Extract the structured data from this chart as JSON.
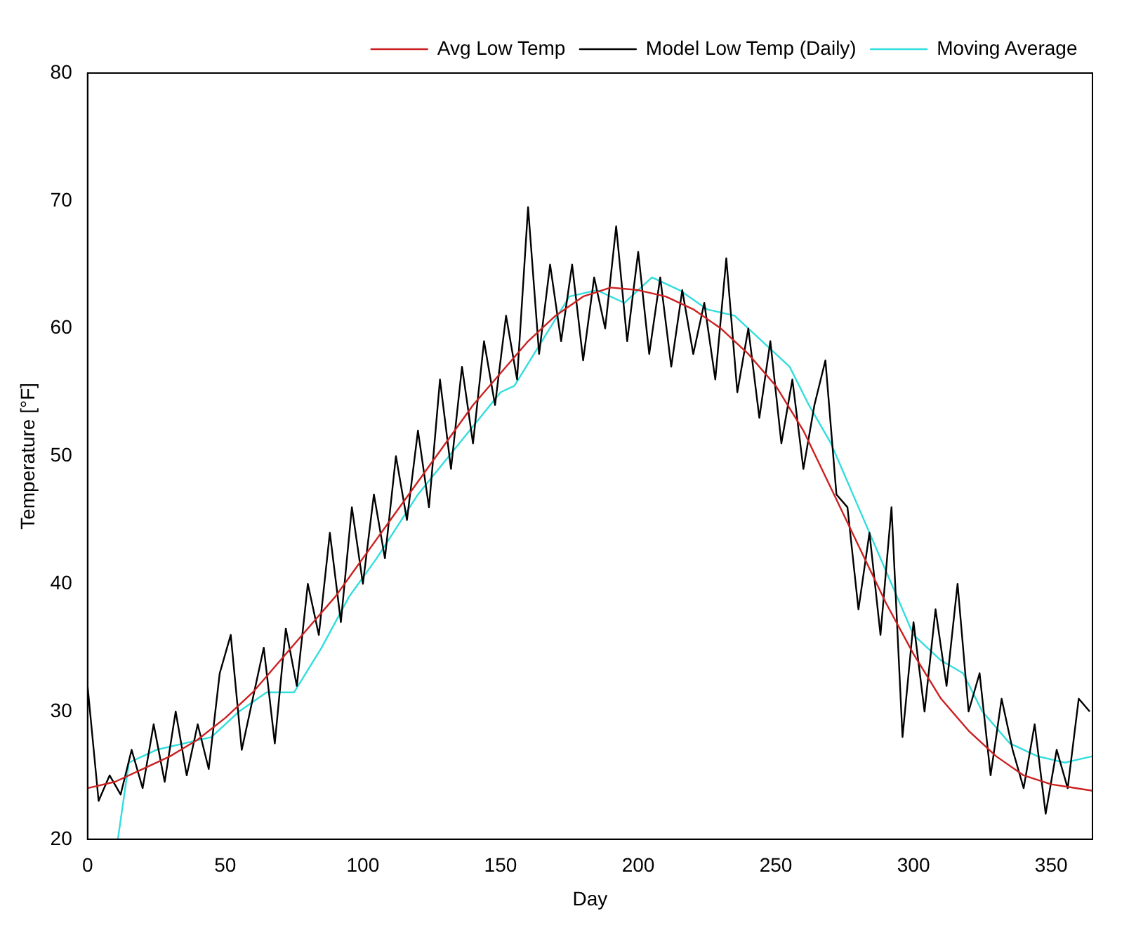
{
  "chart_data": {
    "type": "line",
    "xlabel": "Day",
    "ylabel": "Temperature [°F]",
    "xlim": [
      0,
      365
    ],
    "ylim": [
      20,
      80
    ],
    "xticks": [
      0,
      50,
      100,
      150,
      200,
      250,
      300,
      350
    ],
    "yticks": [
      20,
      30,
      40,
      50,
      60,
      70,
      80
    ],
    "grid": false,
    "legend": "top right",
    "marker": "none",
    "line_style": "solid",
    "series": [
      {
        "name": "Avg Low Temp",
        "color": "#cc2020",
        "x": [
          0,
          10,
          20,
          30,
          40,
          50,
          60,
          70,
          80,
          90,
          100,
          110,
          120,
          130,
          140,
          150,
          160,
          170,
          180,
          190,
          200,
          210,
          220,
          230,
          240,
          250,
          260,
          270,
          280,
          290,
          300,
          310,
          320,
          330,
          340,
          350,
          365
        ],
        "values": [
          24,
          24.5,
          25.5,
          26.5,
          27.8,
          29.5,
          31.5,
          34,
          36.5,
          39,
          42,
          45,
          48,
          51,
          54,
          56.5,
          59,
          61,
          62.5,
          63.2,
          63,
          62.5,
          61.5,
          60,
          58,
          55.5,
          52,
          47.5,
          43,
          38.5,
          34.5,
          31,
          28.5,
          26.5,
          25,
          24.3,
          23.8
        ]
      },
      {
        "name": "Model Low Temp (Daily)",
        "color": "#000000",
        "x": [
          0,
          4,
          8,
          12,
          16,
          20,
          24,
          28,
          32,
          36,
          40,
          44,
          48,
          52,
          56,
          60,
          64,
          68,
          72,
          76,
          80,
          84,
          88,
          92,
          96,
          100,
          104,
          108,
          112,
          116,
          120,
          124,
          128,
          132,
          136,
          140,
          144,
          148,
          152,
          156,
          160,
          164,
          168,
          172,
          176,
          180,
          184,
          188,
          192,
          196,
          200,
          204,
          208,
          212,
          216,
          220,
          224,
          228,
          232,
          236,
          240,
          244,
          248,
          252,
          256,
          260,
          264,
          268,
          272,
          276,
          280,
          284,
          288,
          292,
          296,
          300,
          304,
          308,
          312,
          316,
          320,
          324,
          328,
          332,
          336,
          340,
          344,
          348,
          352,
          356,
          360,
          364
        ],
        "values": [
          32,
          23,
          25,
          23.5,
          27,
          24,
          29,
          24.5,
          30,
          25,
          29,
          25.5,
          33,
          36,
          27,
          31,
          35,
          27.5,
          36.5,
          32,
          40,
          36,
          44,
          37,
          46,
          40,
          47,
          42,
          50,
          45,
          52,
          46,
          56,
          49,
          57,
          51,
          59,
          54,
          61,
          56,
          69.5,
          58,
          65,
          59,
          65,
          57.5,
          64,
          60,
          68,
          59,
          66,
          58,
          64,
          57,
          63,
          58,
          62,
          56,
          65.5,
          55,
          60,
          53,
          59,
          51,
          56,
          49,
          54,
          57.5,
          47,
          46,
          38,
          44,
          36,
          46,
          28,
          37,
          30,
          38,
          32,
          40,
          30,
          33,
          25,
          31,
          27,
          24,
          29,
          22,
          27,
          24,
          31,
          30
        ]
      },
      {
        "name": "Moving Average",
        "color": "#33dddd",
        "x": [
          11,
          15,
          25,
          45,
          55,
          65,
          75,
          85,
          95,
          105,
          120,
          135,
          150,
          155,
          165,
          175,
          185,
          195,
          205,
          215,
          225,
          235,
          245,
          255,
          262,
          270,
          280,
          290,
          300,
          310,
          318,
          325,
          335,
          345,
          355,
          365
        ],
        "values": [
          20,
          26,
          27,
          28,
          30,
          31.5,
          31.5,
          35,
          39,
          42,
          47,
          51,
          55,
          55.5,
          59,
          62.5,
          63,
          62,
          64,
          63,
          61.5,
          61,
          59,
          57,
          54,
          51,
          46,
          41,
          36,
          34,
          33,
          30,
          27.5,
          26.5,
          26,
          26.5
        ]
      }
    ]
  }
}
